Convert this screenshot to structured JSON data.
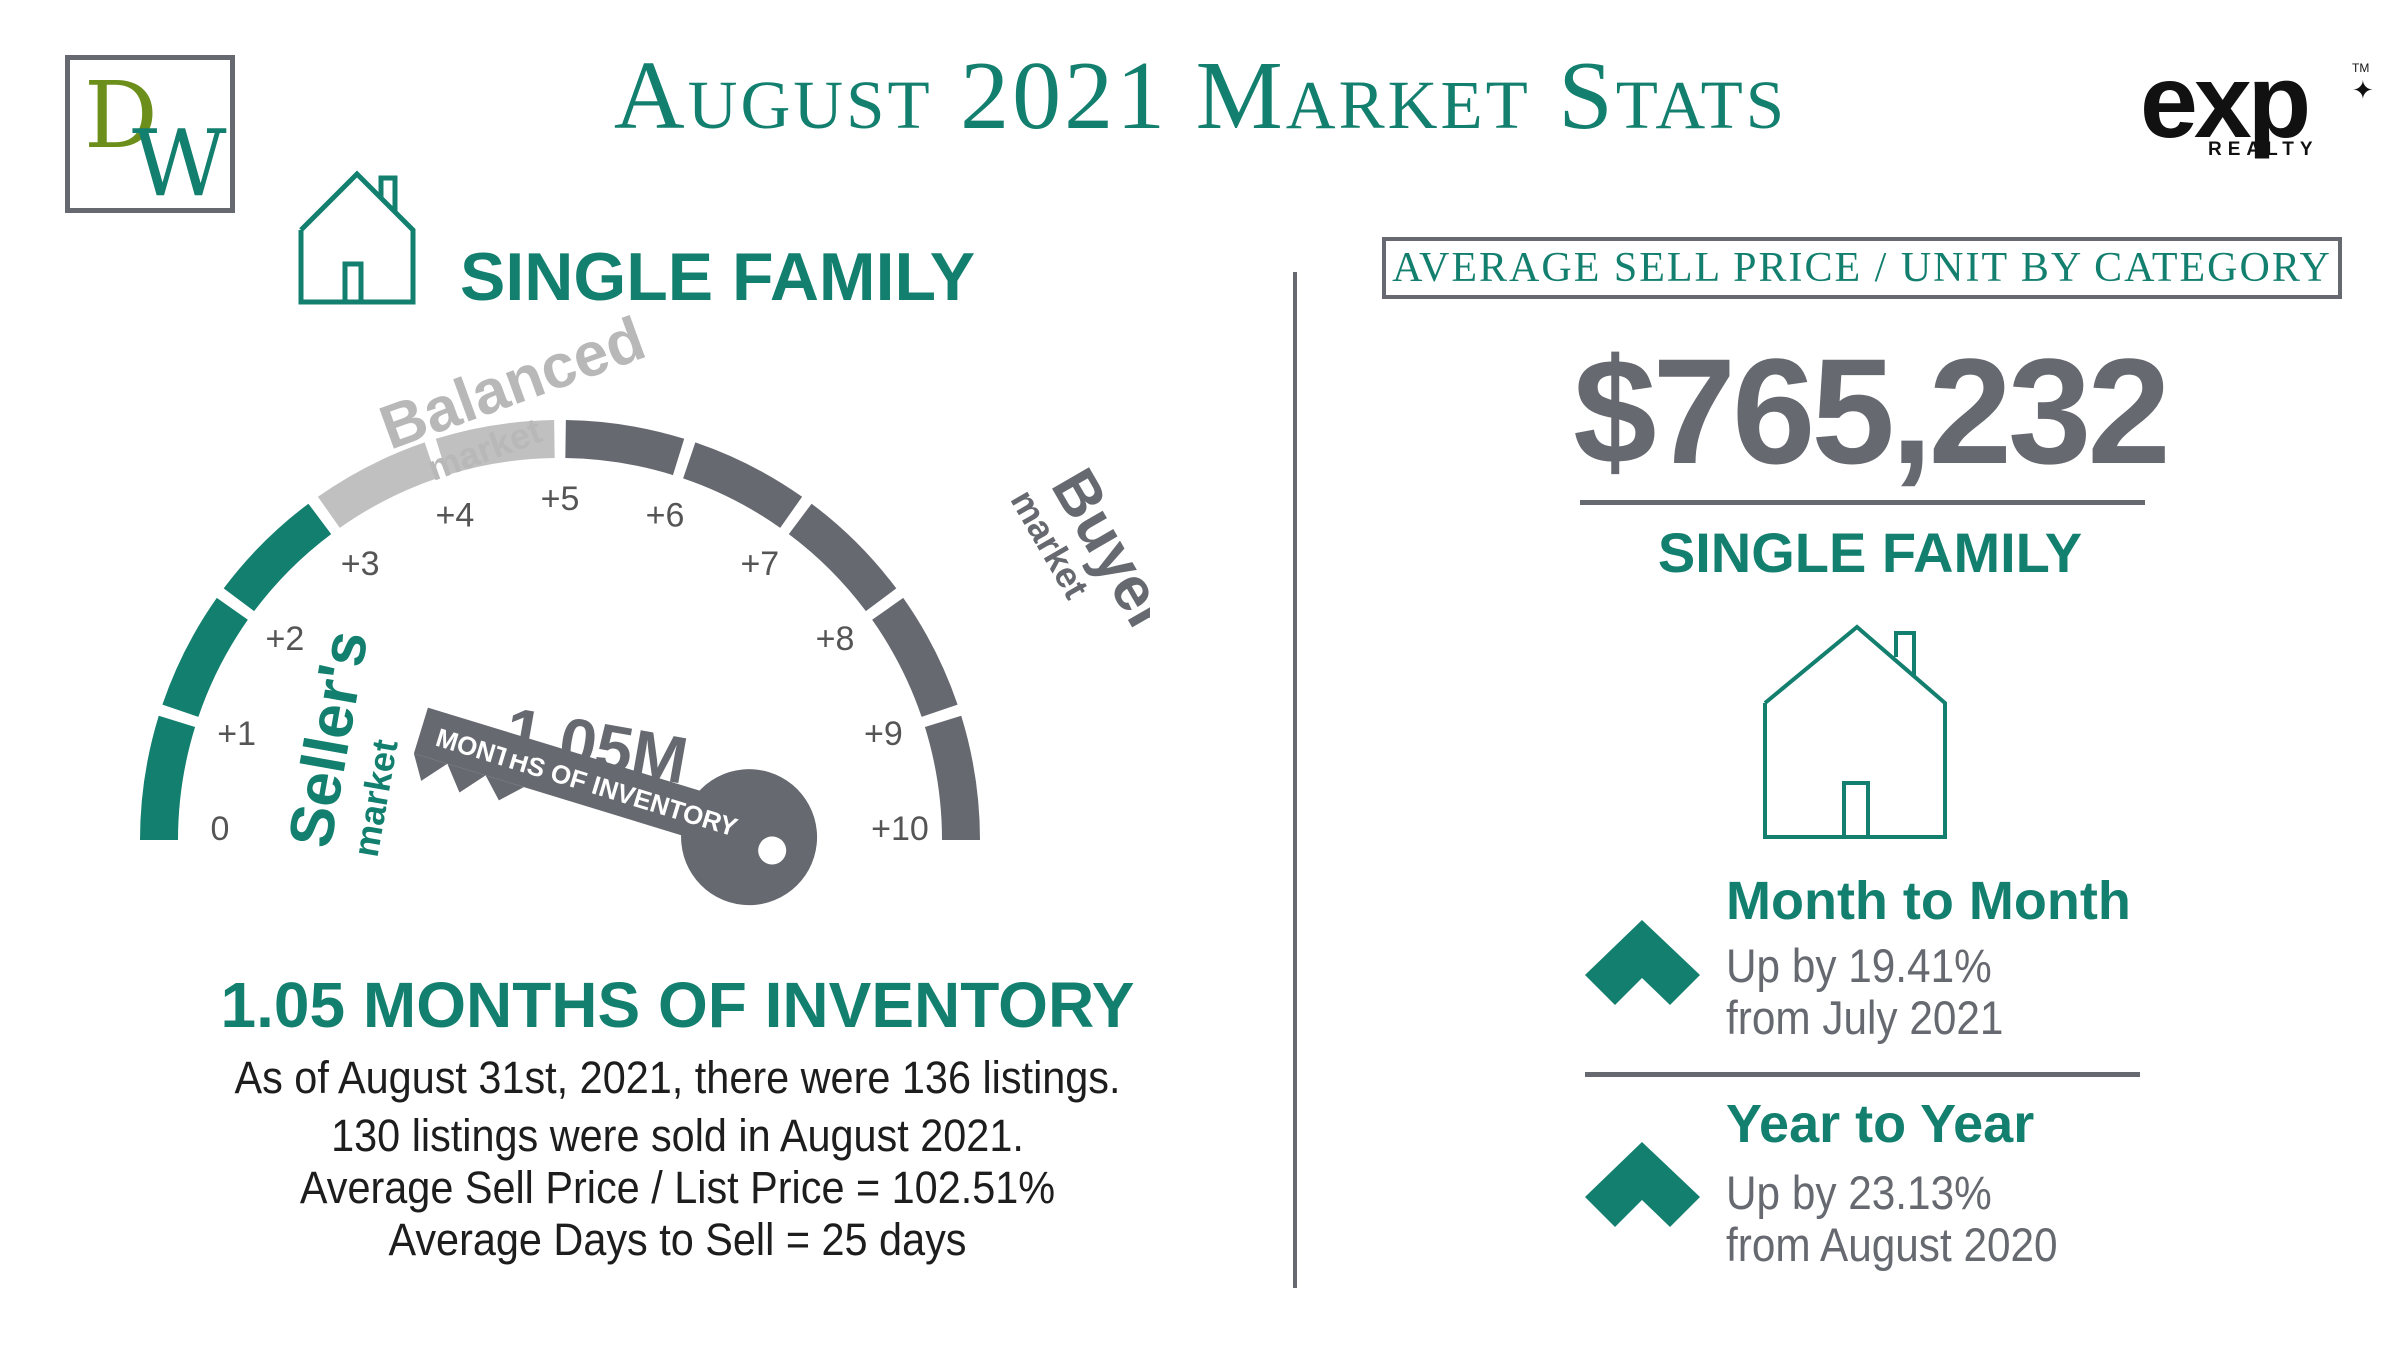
{
  "header": {
    "title": "August 2021 Market Stats",
    "left_logo": {
      "letter1": "D",
      "letter2": "W"
    },
    "right_logo": {
      "wordmark": "exp",
      "subtext": "REALTY",
      "trademark": "TM"
    }
  },
  "left_panel": {
    "category_title": "SINGLE FAMILY",
    "gauge": {
      "ticks": [
        "0",
        "+1",
        "+2",
        "+3",
        "+4",
        "+5",
        "+6",
        "+7",
        "+8",
        "+9",
        "+10"
      ],
      "sellers_label": "Seller's",
      "sellers_sub": "market",
      "balanced_label": "Balanced",
      "balanced_sub": "market",
      "buyers_label": "Buyer's",
      "buyers_sub": "market",
      "key_value": "1.05M",
      "key_caption": "MONTHS OF INVENTORY",
      "colors": {
        "seller": "#137f6e",
        "balanced": "#c0c0c0",
        "buyer": "#666a70"
      }
    },
    "inventory_title": "1.05 MONTHS OF INVENTORY",
    "details": [
      "As of August 31st, 2021, there were 136 listings.",
      "130 listings were sold in August 2021.",
      "Average Sell Price / List Price = 102.51%",
      "Average Days to Sell = 25 days"
    ]
  },
  "right_panel": {
    "section_title": "AVERAGE SELL PRICE / UNIT BY CATEGORY",
    "price": "$765,232",
    "category": "SINGLE FAMILY",
    "month_to_month": {
      "heading": "Month to Month",
      "line1": "Up by 19.41%",
      "line2": "from July 2021",
      "direction": "up"
    },
    "year_to_year": {
      "heading": "Year to Year",
      "line1": "Up by 23.13%",
      "line2": "from August 2020",
      "direction": "up"
    }
  },
  "colors": {
    "teal": "#137f6e",
    "gray": "#666a70",
    "light_gray": "#c0c0c0"
  }
}
